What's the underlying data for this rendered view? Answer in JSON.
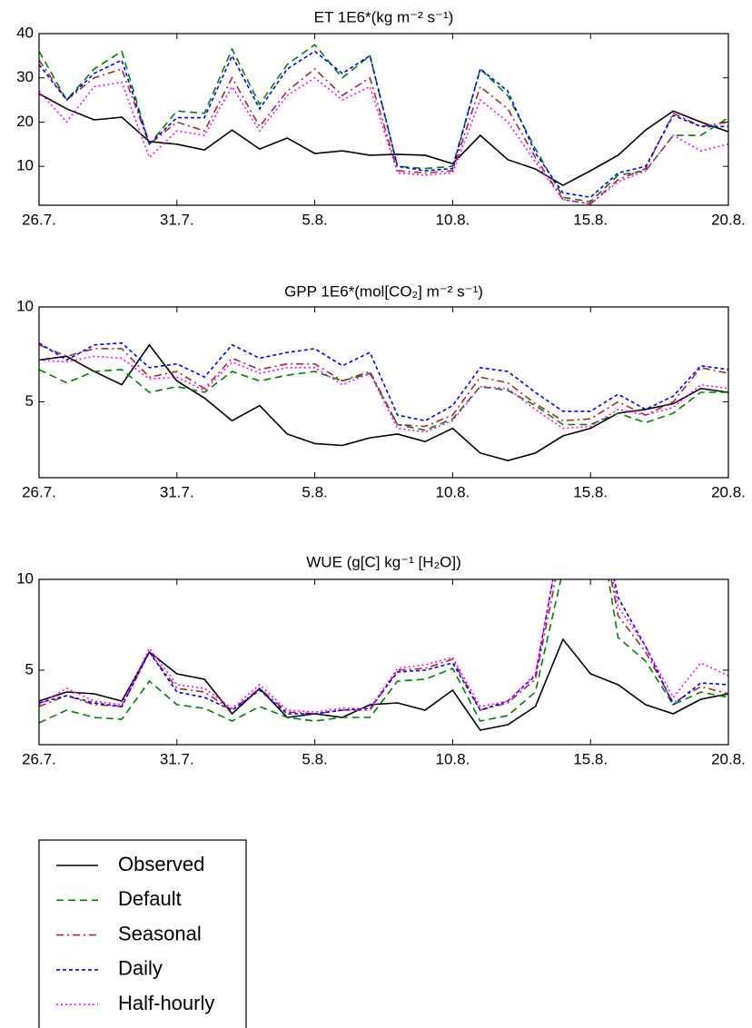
{
  "chart_data": [
    {
      "type": "line",
      "title": "ET  1E6*(kg m⁻² s⁻¹)",
      "categories": [
        "26.7.",
        null,
        null,
        null,
        null,
        "31.7.",
        null,
        null,
        null,
        null,
        "5.8.",
        null,
        null,
        null,
        null,
        "10.8.",
        null,
        null,
        null,
        null,
        "15.8.",
        null,
        null,
        null,
        null,
        "20.8."
      ],
      "ylim": [
        1.2,
        40
      ],
      "yticks": [
        10,
        20,
        30,
        40
      ],
      "series": [
        {
          "name": "Observed",
          "color": "#000000",
          "linestyle": "solid",
          "values": [
            26.4,
            23,
            20.5,
            21.1,
            15.6,
            15,
            13.7,
            18.2,
            13.9,
            16.4,
            12.9,
            13.5,
            12.5,
            12.7,
            12.5,
            10.6,
            17,
            11.5,
            9.4,
            5.7,
            9,
            12.5,
            18.2,
            22.5,
            20,
            17.8
          ]
        },
        {
          "name": "Default",
          "color": "#008000",
          "linestyle": "dashed",
          "values": [
            36,
            25,
            32,
            36,
            15,
            22.5,
            22,
            36.5,
            24,
            33,
            37.5,
            30,
            35,
            10,
            9.5,
            10,
            32,
            26,
            14,
            3,
            2,
            8,
            9,
            17,
            17,
            21
          ]
        },
        {
          "name": "Seasonal",
          "color": "#a52a2a",
          "linestyle": "dashdot",
          "values": [
            34,
            25,
            30,
            32,
            15,
            20,
            18,
            30,
            19,
            27,
            32,
            26,
            30,
            9,
            8.5,
            9,
            28,
            23,
            12,
            2.5,
            1.5,
            7,
            9.5,
            22,
            19,
            20
          ]
        },
        {
          "name": "Daily",
          "color": "#0000ff",
          "linestyle": "shortdash",
          "values": [
            33,
            25,
            31,
            34,
            15,
            21,
            21,
            35,
            23,
            32,
            36,
            31,
            35,
            10,
            9,
            9.5,
            32,
            27,
            13,
            4,
            3,
            8.5,
            10,
            21.5,
            19,
            19
          ]
        },
        {
          "name": "Half-hourly",
          "color": "#ff00ff",
          "linestyle": "dotted",
          "values": [
            27,
            20,
            28,
            29,
            12,
            18,
            17,
            28,
            18,
            26,
            30,
            25,
            28,
            8.5,
            8,
            8.5,
            25,
            20,
            11,
            2.5,
            1.5,
            6.5,
            9,
            17,
            13.5,
            15
          ]
        }
      ]
    },
    {
      "type": "line",
      "title": "GPP  1E6*(mol[CO₂] m⁻² s⁻¹)",
      "categories": [
        "26.7.",
        null,
        null,
        null,
        null,
        "31.7.",
        null,
        null,
        null,
        null,
        "5.8.",
        null,
        null,
        null,
        null,
        "10.8.",
        null,
        null,
        null,
        null,
        "15.8.",
        null,
        null,
        null,
        null,
        "20.8."
      ],
      "ylim": [
        1,
        10
      ],
      "yticks": [
        5,
        10
      ],
      "series": [
        {
          "name": "Observed",
          "color": "#000000",
          "linestyle": "solid",
          "values": [
            7.2,
            7.4,
            6.6,
            5.9,
            8,
            6.1,
            5.2,
            4,
            4.8,
            3.3,
            2.8,
            2.7,
            3.1,
            3.3,
            2.9,
            3.6,
            2.3,
            1.9,
            2.3,
            3.2,
            3.6,
            4.4,
            4.6,
            4.9,
            5.7,
            5.5
          ]
        },
        {
          "name": "Default",
          "color": "#008000",
          "linestyle": "dashed",
          "values": [
            6.7,
            6,
            6.6,
            6.7,
            5.5,
            5.8,
            5.5,
            6.6,
            6.1,
            6.4,
            6.6,
            6.1,
            6.5,
            3.8,
            3.5,
            4.1,
            5.8,
            5.6,
            4.8,
            3.8,
            3.8,
            4.4,
            3.9,
            4.4,
            5.5,
            5.5
          ]
        },
        {
          "name": "Seasonal",
          "color": "#a52a2a",
          "linestyle": "dashdot",
          "values": [
            8,
            7.4,
            7.8,
            7.8,
            6.3,
            6.6,
            5.7,
            7.3,
            6.7,
            7,
            7,
            6.1,
            6.6,
            3.8,
            3.7,
            4.3,
            6.3,
            6,
            4.9,
            4,
            4.1,
            5,
            4.3,
            5,
            6.8,
            6.5
          ]
        },
        {
          "name": "Daily",
          "color": "#0000ff",
          "linestyle": "shortdash",
          "values": [
            8.1,
            7.2,
            8,
            8.1,
            6.8,
            7,
            6.3,
            8,
            7.3,
            7.6,
            7.8,
            6.9,
            7.6,
            4.3,
            4,
            4.8,
            6.8,
            6.6,
            5.5,
            4.5,
            4.5,
            5.4,
            4.6,
            5.3,
            6.9,
            6.7
          ]
        },
        {
          "name": "Half-hourly",
          "color": "#ff00ff",
          "linestyle": "dotted",
          "values": [
            7.2,
            7.1,
            7.4,
            7.3,
            6.2,
            6.3,
            5.6,
            7.1,
            6.5,
            6.8,
            6.8,
            5.9,
            6.5,
            3.6,
            3.4,
            4,
            5.8,
            5.7,
            4.6,
            3.6,
            3.7,
            4.6,
            4.3,
            4.7,
            5.9,
            5.7
          ]
        }
      ]
    },
    {
      "type": "line",
      "title": "WUE  (g[C] kg⁻¹ [H₂O])",
      "categories": [
        "26.7.",
        null,
        null,
        null,
        null,
        "31.7.",
        null,
        null,
        null,
        null,
        "5.8.",
        null,
        null,
        null,
        null,
        "10.8.",
        null,
        null,
        null,
        null,
        "15.8.",
        null,
        null,
        null,
        null,
        "20.8."
      ],
      "ylim": [
        0.9,
        10
      ],
      "yticks": [
        5,
        10
      ],
      "series": [
        {
          "name": "Observed",
          "color": "#000000",
          "linestyle": "solid",
          "values": [
            3.3,
            3.8,
            3.7,
            3.3,
            6,
            4.8,
            4.5,
            2.6,
            4,
            2.4,
            2.6,
            2.4,
            3.1,
            3.2,
            2.8,
            3.9,
            1.7,
            2,
            3,
            6.7,
            4.8,
            4.2,
            3.1,
            2.6,
            3.4,
            3.7
          ]
        },
        {
          "name": "Default",
          "color": "#008000",
          "linestyle": "dashed",
          "values": [
            2.1,
            2.8,
            2.4,
            2.3,
            4.4,
            3.1,
            2.9,
            2.2,
            3,
            2.4,
            2.2,
            2.4,
            2.4,
            4.4,
            4.5,
            5.1,
            2.2,
            2.5,
            3.8,
            10.5,
            16,
            6.8,
            5.5,
            3.1,
            3.8,
            3.5
          ]
        },
        {
          "name": "Seasonal",
          "color": "#a52a2a",
          "linestyle": "dashdot",
          "values": [
            3,
            3.6,
            3.1,
            3,
            6,
            4,
            3.8,
            2.8,
            4,
            2.7,
            2.6,
            2.8,
            2.8,
            5,
            5.1,
            5.6,
            2.8,
            3.2,
            4.5,
            12,
            16,
            8,
            6,
            3.2,
            4.1,
            3.7
          ]
        },
        {
          "name": "Daily",
          "color": "#0000ff",
          "linestyle": "shortdash",
          "values": [
            3.2,
            3.6,
            3.2,
            3,
            6,
            3.8,
            3.5,
            2.8,
            3.9,
            2.6,
            2.6,
            2.8,
            2.9,
            4.9,
            5,
            5.4,
            2.8,
            3.3,
            4.7,
            13,
            16,
            9,
            6.3,
            3.1,
            4.3,
            4.2
          ]
        },
        {
          "name": "Half-hourly",
          "color": "#ff00ff",
          "linestyle": "dotted",
          "values": [
            3.1,
            4,
            3.3,
            3.1,
            6.2,
            4.2,
            4,
            2.9,
            4.2,
            2.8,
            2.7,
            2.9,
            2.9,
            5.1,
            5.3,
            5.7,
            3,
            3.3,
            4.8,
            13,
            16,
            8.5,
            6.3,
            3.5,
            5.4,
            4.7
          ]
        }
      ]
    }
  ]
}
